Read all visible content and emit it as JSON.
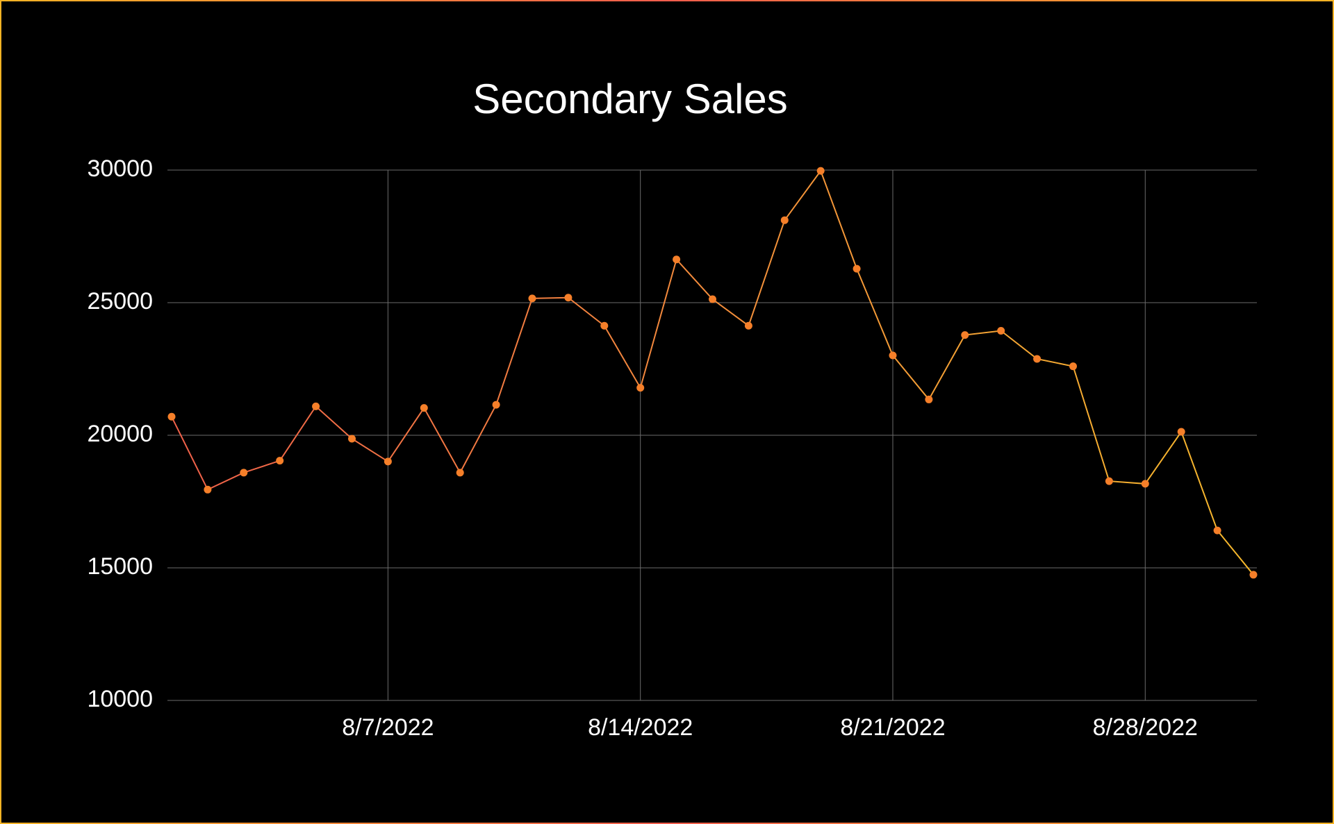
{
  "chart_data": {
    "type": "line",
    "title": "Secondary Sales",
    "title_colors": [
      "#f4524f",
      "#f8ad18"
    ],
    "x": [
      "8/1/2022",
      "8/2/2022",
      "8/3/2022",
      "8/4/2022",
      "8/5/2022",
      "8/6/2022",
      "8/7/2022",
      "8/8/2022",
      "8/9/2022",
      "8/10/2022",
      "8/11/2022",
      "8/12/2022",
      "8/13/2022",
      "8/14/2022",
      "8/15/2022",
      "8/16/2022",
      "8/17/2022",
      "8/18/2022",
      "8/19/2022",
      "8/20/2022",
      "8/21/2022",
      "8/22/2022",
      "8/23/2022",
      "8/24/2022",
      "8/25/2022",
      "8/26/2022",
      "8/27/2022",
      "8/28/2022",
      "8/29/2022",
      "8/30/2022",
      "8/31/2022"
    ],
    "series": [
      {
        "name": "Secondary Sales",
        "line_colors": [
          "#f0604a",
          "#f6b92c"
        ],
        "marker_color": "#f57f29",
        "values": [
          20700,
          17950,
          18590,
          19040,
          21090,
          19870,
          19010,
          21030,
          18590,
          21150,
          25160,
          25190,
          24130,
          21790,
          26630,
          25130,
          24130,
          28110,
          29970,
          26280,
          23010,
          21350,
          23780,
          23940,
          22880,
          22600,
          18270,
          18170,
          20130,
          16410,
          14740
        ]
      }
    ],
    "xlim": [
      "8/1/2022",
      "8/31/2022"
    ],
    "xticks": [
      "8/7/2022",
      "8/14/2022",
      "8/21/2022",
      "8/28/2022"
    ],
    "ylim": [
      10000,
      30000
    ],
    "yticks": [
      10000,
      15000,
      20000,
      25000,
      30000
    ],
    "grid": true
  }
}
